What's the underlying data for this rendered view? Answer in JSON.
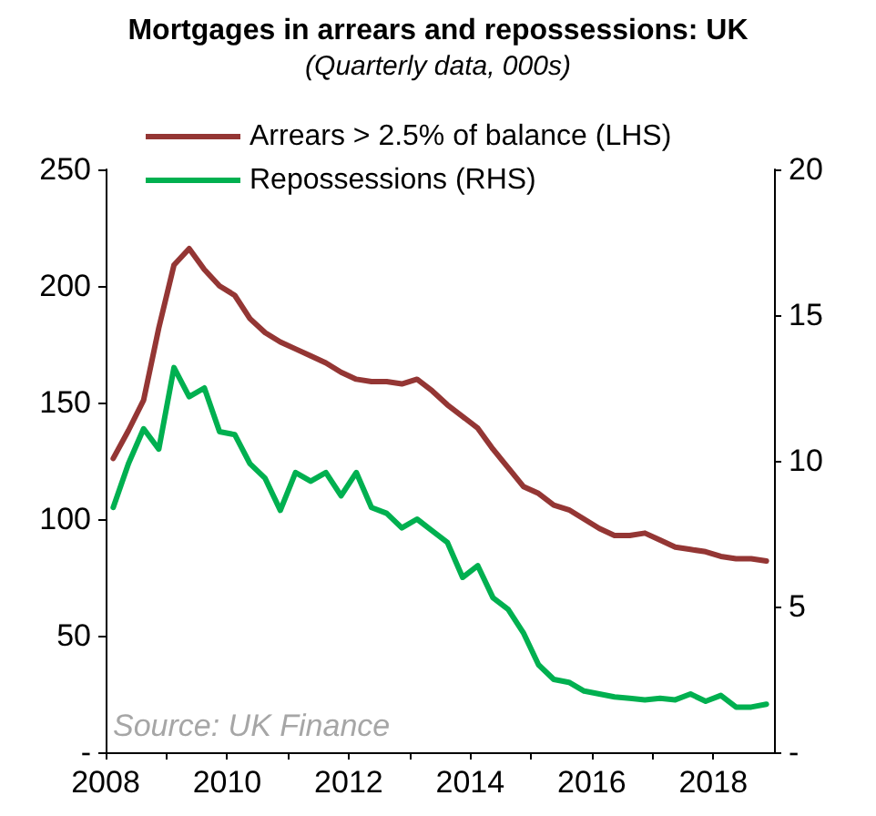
{
  "chart_data": {
    "type": "line",
    "title": "Mortgages in arrears and repossessions: UK",
    "subtitle": "(Quarterly data, 000s)",
    "x": [
      2008.125,
      2008.375,
      2008.625,
      2008.875,
      2009.125,
      2009.375,
      2009.625,
      2009.875,
      2010.125,
      2010.375,
      2010.625,
      2010.875,
      2011.125,
      2011.375,
      2011.625,
      2011.875,
      2012.125,
      2012.375,
      2012.625,
      2012.875,
      2013.125,
      2013.375,
      2013.625,
      2013.875,
      2014.125,
      2014.375,
      2014.625,
      2014.875,
      2015.125,
      2015.375,
      2015.625,
      2015.875,
      2016.125,
      2016.375,
      2016.625,
      2016.875,
      2017.125,
      2017.375,
      2017.625,
      2017.875,
      2018.125,
      2018.375,
      2018.625,
      2018.875
    ],
    "series": [
      {
        "name": "Arrears > 2.5% of balance (LHS)",
        "color": "#943634",
        "values": [
          126,
          138,
          151,
          182,
          209,
          216,
          207,
          200,
          196,
          186,
          180,
          176,
          173,
          170,
          167,
          163,
          160,
          159,
          159,
          158,
          160,
          155,
          149,
          144,
          139,
          130,
          122,
          114,
          111,
          106,
          104,
          100,
          96,
          93,
          93,
          94,
          91,
          88,
          87,
          86,
          84,
          83,
          83,
          82
        ]
      },
      {
        "name": "Repossessions (RHS)",
        "color": "#00b050",
        "axis": "y2",
        "values": [
          8.4,
          9.9,
          11.1,
          10.4,
          13.2,
          12.2,
          12.5,
          11.0,
          10.9,
          9.9,
          9.4,
          8.3,
          9.6,
          9.3,
          9.6,
          8.8,
          9.6,
          8.4,
          8.2,
          7.7,
          8.0,
          7.6,
          7.2,
          6.0,
          6.4,
          5.3,
          4.9,
          4.1,
          3.0,
          2.5,
          2.4,
          2.1,
          2.0,
          1.9,
          1.85,
          1.8,
          1.85,
          1.8,
          2.0,
          1.75,
          1.95,
          1.55,
          1.55,
          1.65
        ]
      }
    ],
    "xlim": [
      2008,
      2019
    ],
    "xticks": [
      2008,
      {
        "value": 2009,
        "label": null
      },
      2010,
      {
        "value": 2011,
        "label": null
      },
      2012,
      {
        "value": 2013,
        "label": null
      },
      2014,
      {
        "value": 2015,
        "label": null
      },
      2016,
      {
        "value": 2017,
        "label": null
      },
      2018
    ],
    "ylim": [
      0,
      250
    ],
    "yticks": [
      {
        "value": 0,
        "label": "-"
      },
      50,
      100,
      150,
      200,
      250
    ],
    "y2lim": [
      0,
      20
    ],
    "y2ticks": [
      {
        "value": 0,
        "label": "-"
      },
      5,
      10,
      15,
      20
    ],
    "annotations": [
      "Source: UK Finance"
    ],
    "legend": "top left",
    "grid": false,
    "marker": "none",
    "line_style": "solid"
  }
}
